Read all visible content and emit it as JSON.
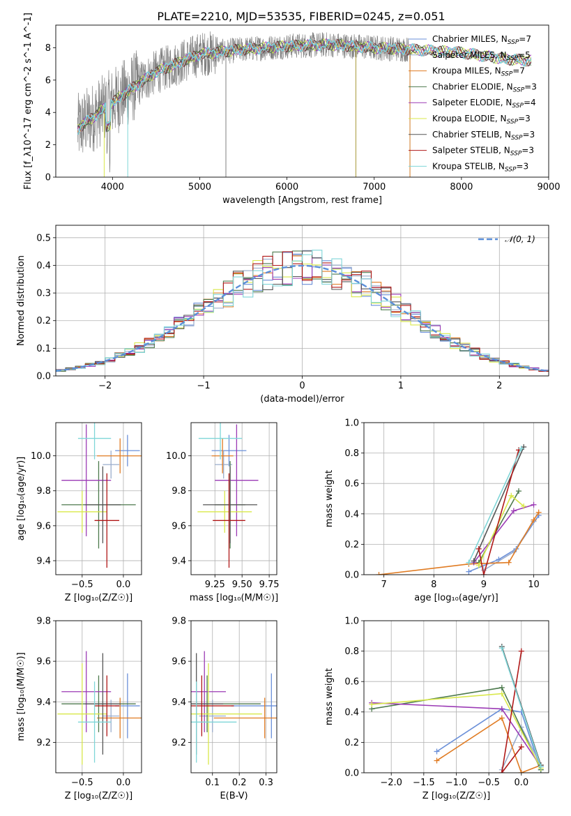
{
  "figure_title": "PLATE=2210, MJD=53535, FIBERID=0245, z=0.051",
  "colors": {
    "Chabrier MILES": "#6a8fd8",
    "Salpeter MILES": "#9aaccc",
    "Kroupa MILES": "#e07b22",
    "Chabrier ELODIE": "#4d7a4d",
    "Salpeter ELODIE": "#9b3ab5",
    "Kroupa ELODIE": "#d9e84a",
    "Chabrier STELIB": "#555555",
    "Salpeter STELIB": "#b01818",
    "Kroupa STELIB": "#7fd6d8",
    "data": "#808080",
    "gauss": "#5b8fd9"
  },
  "chart_data": [
    {
      "id": "spectrum",
      "type": "line",
      "title": "PLATE=2210, MJD=53535, FIBERID=0245, z=0.051",
      "xlabel": "wavelength [Angstrom, rest frame]",
      "ylabel": "Flux [f_λ10^-17 erg cm^-2 s^-1 A^-1]",
      "xlim": [
        3350,
        9000
      ],
      "ylim": [
        0,
        9.4
      ],
      "xticks": [
        4000,
        5000,
        6000,
        7000,
        8000,
        9000
      ],
      "yticks": [
        0,
        2,
        4,
        6,
        8
      ],
      "legend_position": "right",
      "legend": [
        {
          "base": "Chabrier MILES, N",
          "sub": "SSP",
          "tail": "=7"
        },
        {
          "base": "Salpeter MILES, N",
          "sub": "SSP",
          "tail": "=5"
        },
        {
          "base": "Kroupa MILES, N",
          "sub": "SSP",
          "tail": "=7"
        },
        {
          "base": "Chabrier ELODIE, N",
          "sub": "SSP",
          "tail": "=3"
        },
        {
          "base": "Salpeter ELODIE, N",
          "sub": "SSP",
          "tail": "=4"
        },
        {
          "base": "Kroupa ELODIE, N",
          "sub": "SSP",
          "tail": "=3"
        },
        {
          "base": "Chabrier STELIB, N",
          "sub": "SSP",
          "tail": "=3"
        },
        {
          "base": "Salpeter STELIB, N",
          "sub": "SSP",
          "tail": "=3"
        },
        {
          "base": "Kroupa STELIB, N",
          "sub": "SSP",
          "tail": "=3"
        }
      ],
      "continuum": {
        "x": [
          3600,
          3800,
          4000,
          4200,
          4500,
          5000,
          5500,
          6000,
          6500,
          7000,
          7400,
          8000,
          8500,
          8800
        ],
        "y": [
          3.0,
          3.8,
          4.6,
          5.4,
          6.5,
          7.6,
          7.9,
          8.1,
          8.2,
          8.0,
          7.9,
          7.7,
          7.3,
          7.2
        ]
      }
    },
    {
      "id": "residuals",
      "type": "bar",
      "xlabel": "(data-model)/error",
      "ylabel": "Normed distribution",
      "xlim": [
        -2.5,
        2.5
      ],
      "ylim": [
        0,
        0.545
      ],
      "xticks": [
        -2,
        -1,
        0,
        1,
        2
      ],
      "yticks": [
        0.0,
        0.1,
        0.2,
        0.3,
        0.4,
        0.5
      ],
      "grid": true,
      "legend": "𝒩(0, 1)",
      "bin_width": 0.1,
      "bin_start": -2.5
    },
    {
      "id": "age_vs_Z",
      "type": "scatter",
      "xlabel": "Z [log₁₀(Z/Z☉)]",
      "ylabel": "age  [log₁₀(age/yr)]",
      "xlim": [
        -0.82,
        0.22
      ],
      "ylim": [
        9.32,
        10.19
      ],
      "xticks": [
        -0.5,
        0.0
      ],
      "yticks": [
        9.4,
        9.6,
        9.8,
        10.0
      ]
    },
    {
      "id": "age_vs_mass",
      "type": "scatter",
      "xlabel": "mass [log₁₀(M/M☉)]",
      "ylabel": "",
      "xlim": [
        9.03,
        9.82
      ],
      "ylim": [
        9.32,
        10.19
      ],
      "xticks": [
        9.25,
        9.5,
        9.75
      ],
      "yticks": [
        9.4,
        9.6,
        9.8,
        10.0
      ]
    },
    {
      "id": "weight_vs_age",
      "type": "line",
      "xlabel": "age  [log₁₀(age/yr)]",
      "ylabel": "mass weight",
      "xlim": [
        6.6,
        10.3
      ],
      "ylim": [
        0,
        1.0
      ],
      "xticks": [
        7,
        8,
        9,
        10
      ],
      "yticks": [
        0.0,
        0.2,
        0.4,
        0.6,
        0.8,
        1.0
      ]
    },
    {
      "id": "mass_vs_Z",
      "type": "scatter",
      "xlabel": "Z [log₁₀(Z/Z☉)]",
      "ylabel": "mass [log₁₀(M/M☉)]",
      "xlim": [
        -0.82,
        0.22
      ],
      "ylim": [
        9.05,
        9.8
      ],
      "xticks": [
        -0.5,
        0.0
      ],
      "yticks": [
        9.2,
        9.4,
        9.6,
        9.8
      ]
    },
    {
      "id": "mass_vs_ebv",
      "type": "scatter",
      "xlabel": "E(B-V)",
      "ylabel": "",
      "xlim": [
        0.02,
        0.34
      ],
      "ylim": [
        9.05,
        9.8
      ],
      "xticks": [
        0.1,
        0.2,
        0.3
      ],
      "yticks": [
        9.2,
        9.4,
        9.6,
        9.8
      ]
    },
    {
      "id": "weight_vs_Z",
      "type": "line",
      "xlabel": "Z [log₁₀(Z/Z☉)]",
      "ylabel": "mass weight",
      "xlim": [
        -2.42,
        0.42
      ],
      "ylim": [
        0,
        1.0
      ],
      "xticks": [
        -2.0,
        -1.5,
        -1.0,
        -0.5,
        0.0
      ],
      "yticks": [
        0.0,
        0.2,
        0.4,
        0.6,
        0.8,
        1.0
      ]
    }
  ],
  "fits": [
    {
      "model": "Chabrier MILES",
      "Z": 0.05,
      "Z_err": 0.15,
      "age": 10.03,
      "age_err": 0.09,
      "mass": 9.38,
      "mass_err": 0.16,
      "ebv": 0.32,
      "ebv_err": 0.15,
      "age_w": [
        [
          8.7,
          0.02
        ],
        [
          9.3,
          0.1
        ],
        [
          9.65,
          0.17
        ],
        [
          10.1,
          0.39
        ]
      ],
      "z_w": [
        [
          -1.3,
          0.14
        ],
        [
          -0.3,
          0.42
        ],
        [
          0.0,
          0.4
        ],
        [
          0.3,
          0.02
        ]
      ]
    },
    {
      "model": "Salpeter MILES",
      "Z": -0.15,
      "Z_err": 0.1,
      "age": 9.95,
      "age_err": 0.08,
      "mass": 9.33,
      "mass_err": 0.08,
      "ebv": 0.1,
      "ebv_err": 0.05,
      "age_w": [
        [
          9.0,
          0.03
        ],
        [
          9.6,
          0.15
        ],
        [
          10.0,
          0.35
        ]
      ],
      "z_w": [
        [
          -0.3,
          0.02
        ],
        [
          0.0,
          0.3
        ],
        [
          0.3,
          0.05
        ]
      ]
    },
    {
      "model": "Kroupa MILES",
      "Z": -0.04,
      "Z_err": 0.28,
      "age": 10.0,
      "age_err": 0.1,
      "mass": 9.32,
      "mass_err": 0.1,
      "ebv": 0.295,
      "ebv_err": 0.19,
      "age_w": [
        [
          6.9,
          0.0
        ],
        [
          8.7,
          0.07
        ],
        [
          9.5,
          0.08
        ],
        [
          10.0,
          0.36
        ],
        [
          10.1,
          0.41
        ]
      ],
      "z_w": [
        [
          -1.3,
          0.08
        ],
        [
          -0.3,
          0.36
        ],
        [
          0.0,
          0.0
        ],
        [
          0.3,
          0.05
        ]
      ]
    },
    {
      "model": "Chabrier ELODIE",
      "Z": -0.3,
      "Z_err": 0.45,
      "age": 9.72,
      "age_err": 0.25,
      "mass": 9.39,
      "mass_err": 0.14,
      "ebv": 0.08,
      "ebv_err": 0.2,
      "age_w": [
        [
          8.9,
          0.08
        ],
        [
          9.7,
          0.55
        ]
      ],
      "z_w": [
        [
          -2.3,
          0.42
        ],
        [
          -0.3,
          0.56
        ],
        [
          0.3,
          0.02
        ]
      ]
    },
    {
      "model": "Salpeter ELODIE",
      "Z": -0.45,
      "Z_err": 0.3,
      "age": 9.86,
      "age_err": 0.32,
      "mass": 9.45,
      "mass_err": 0.2,
      "ebv": 0.07,
      "ebv_err": 0.08,
      "age_w": [
        [
          8.8,
          0.08
        ],
        [
          9.6,
          0.42
        ],
        [
          10.0,
          0.46
        ]
      ],
      "z_w": [
        [
          -2.3,
          0.46
        ],
        [
          -0.3,
          0.42
        ],
        [
          0.3,
          0.04
        ]
      ]
    },
    {
      "model": "Kroupa ELODIE",
      "Z": -0.5,
      "Z_err": 0.3,
      "age": 9.68,
      "age_err": 0.12,
      "mass": 9.34,
      "mass_err": 0.25,
      "ebv": 0.085,
      "ebv_err": 0.2,
      "age_w": [
        [
          8.9,
          0.06
        ],
        [
          9.55,
          0.52
        ],
        [
          9.8,
          0.45
        ]
      ],
      "z_w": [
        [
          -2.3,
          0.45
        ],
        [
          -0.3,
          0.52
        ],
        [
          0.3,
          0.03
        ]
      ]
    },
    {
      "model": "Chabrier STELIB",
      "Z": -0.25,
      "Z_err": 0.22,
      "age": 9.72,
      "age_err": 0.22,
      "mass": 9.39,
      "mass_err": 0.25,
      "ebv": 0.04,
      "ebv_err": 0.1,
      "age_w": [
        [
          8.8,
          0.09
        ],
        [
          9.8,
          0.84
        ]
      ],
      "z_w": [
        [
          -0.3,
          0.83
        ],
        [
          0.3,
          0.05
        ]
      ]
    },
    {
      "model": "Salpeter STELIB",
      "Z": -0.2,
      "Z_err": 0.15,
      "age": 9.63,
      "age_err": 0.27,
      "mass": 9.38,
      "mass_err": 0.15,
      "ebv": 0.06,
      "ebv_err": 0.12,
      "age_w": [
        [
          8.9,
          0.17
        ],
        [
          9.0,
          0.0
        ],
        [
          9.7,
          0.82
        ]
      ],
      "z_w": [
        [
          0.0,
          0.17
        ],
        [
          -0.3,
          0.0
        ],
        [
          0.0,
          0.8
        ]
      ]
    },
    {
      "model": "Kroupa STELIB",
      "Z": -0.35,
      "Z_err": 0.2,
      "age": 10.1,
      "age_err": 0.12,
      "mass": 9.3,
      "mass_err": 0.2,
      "ebv": 0.04,
      "ebv_err": 0.15,
      "age_w": [
        [
          8.7,
          0.08
        ],
        [
          9.75,
          0.83
        ]
      ],
      "z_w": [
        [
          -0.3,
          0.82
        ],
        [
          0.3,
          0.04
        ]
      ]
    }
  ]
}
